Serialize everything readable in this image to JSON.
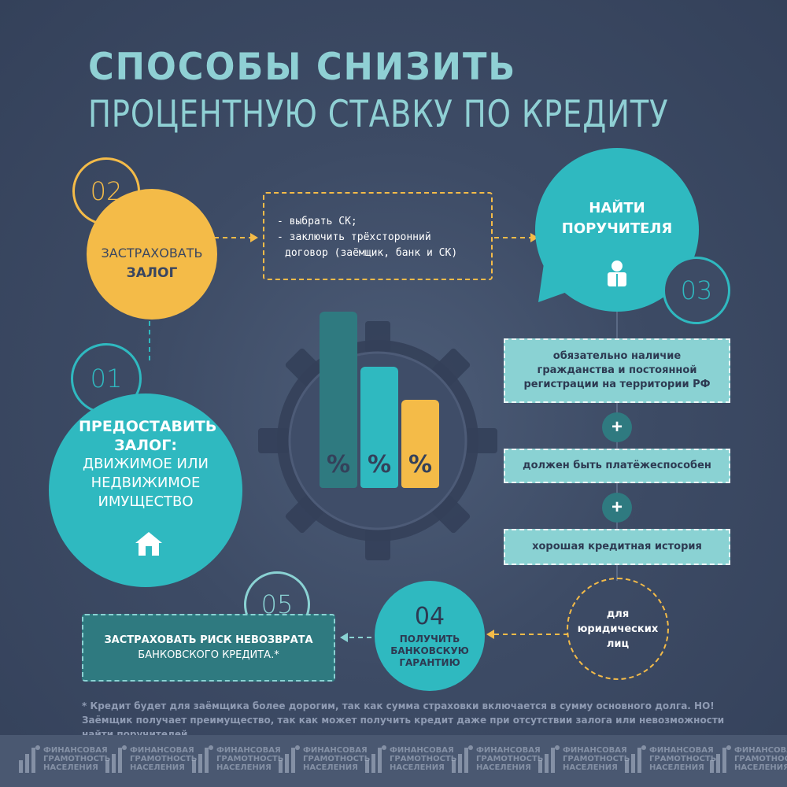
{
  "title": {
    "line1": "СПОСОБЫ СНИЗИТЬ",
    "line2": "ПРОЦЕНТНУЮ СТАВКУ ПО КРЕДИТУ"
  },
  "colors": {
    "background": "#3d4b65",
    "yellow": "#f4bb48",
    "teal": "#2fb9c0",
    "dark_teal": "#2f7a80",
    "light_teal": "#8ad2d3",
    "title": "#8fd0d4"
  },
  "steps": {
    "s01": {
      "number": "01",
      "title": "ПРЕДОСТАВИТЬ ЗАЛОГ:",
      "text_lines": [
        "ДВИЖИМОЕ ИЛИ",
        "НЕДВИЖИМОЕ",
        "ИМУЩЕСТВО"
      ],
      "icon": "house-icon"
    },
    "s02": {
      "number": "02",
      "line1": "ЗАСТРАХОВАТЬ",
      "line2": "ЗАЛОГ",
      "notes": [
        "- выбрать СК;",
        "- заключить трёхсторонний",
        "договор (заёмщик, банк и СК)"
      ]
    },
    "s03": {
      "number": "03",
      "line1": "НАЙТИ",
      "line2": "ПОРУЧИТЕЛЯ",
      "icon": "person-icon",
      "requirements": [
        "обязательно наличие гражданства и постоянной регистрации на территории РФ",
        "должен быть платёжеспособен",
        "хорошая кредитная история"
      ],
      "plus": "+",
      "legal_note": [
        "для",
        "юридических",
        "лиц"
      ]
    },
    "s04": {
      "number": "04",
      "lines": [
        "ПОЛУЧИТЬ",
        "БАНКОВСКУЮ",
        "ГАРАНТИЮ"
      ]
    },
    "s05": {
      "number": "05",
      "line1": "ЗАСТРАХОВАТЬ РИСК НЕВОЗВРАТА",
      "line2": "БАНКОВСКОГО КРЕДИТА.*"
    }
  },
  "bars": {
    "symbol": "%",
    "levels": [
      1.0,
      0.67,
      0.45
    ],
    "colors": [
      "#2f7a80",
      "#2fb9c0",
      "#f4bb48"
    ]
  },
  "footnote": "* Кредит будет для заёмщика более дорогим, так как сумма страховки включается в сумму основного долга. НО! Заёмщик получает преимущество, так как может получить кредит даже при отсутствии залога или невозможности найти поручителей.",
  "footer": {
    "logo_lines": [
      "ФИНАНСОВАЯ",
      "ГРАМОТНОСТЬ",
      "НАСЕЛЕНИЯ"
    ]
  }
}
